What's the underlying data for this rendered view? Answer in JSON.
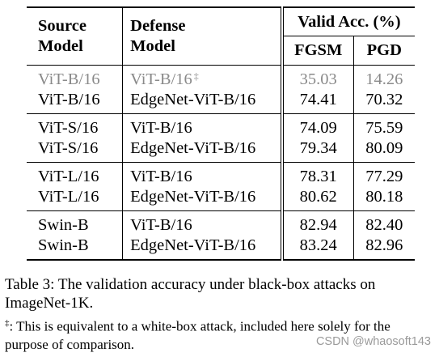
{
  "table": {
    "headers": {
      "source_line1": "Source",
      "source_line2": "Model",
      "defense_line1": "Defense",
      "defense_line2": "Model",
      "valid_acc": "Valid Acc. (%)",
      "fgsm": "FGSM",
      "pgd": "PGD"
    },
    "groups": [
      [
        {
          "source": "ViT-B/16",
          "defense": "ViT-B/16",
          "dagger": "‡",
          "fgsm": "35.03",
          "pgd": "14.26",
          "muted": true
        },
        {
          "source": "ViT-B/16",
          "defense": "EdgeNet-ViT-B/16",
          "fgsm": "74.41",
          "pgd": "70.32"
        }
      ],
      [
        {
          "source": "ViT-S/16",
          "defense": "ViT-B/16",
          "fgsm": "74.09",
          "pgd": "75.59"
        },
        {
          "source": "ViT-S/16",
          "defense": "EdgeNet-ViT-B/16",
          "fgsm": "79.34",
          "pgd": "80.09"
        }
      ],
      [
        {
          "source": "ViT-L/16",
          "defense": "ViT-B/16",
          "fgsm": "78.31",
          "pgd": "77.29"
        },
        {
          "source": "ViT-L/16",
          "defense": "EdgeNet-ViT-B/16",
          "fgsm": "80.62",
          "pgd": "80.18"
        }
      ],
      [
        {
          "source": "Swin-B",
          "defense": "ViT-B/16",
          "fgsm": "82.94",
          "pgd": "82.40"
        },
        {
          "source": "Swin-B",
          "defense": "EdgeNet-ViT-B/16",
          "fgsm": "83.24",
          "pgd": "82.96"
        }
      ]
    ]
  },
  "caption": "Table 3: The validation accuracy under black-box attacks on ImageNet-1K.",
  "footnote": {
    "mark": "‡",
    "text": ": This is equivalent to a white-box attack, included here solely for the purpose of comparison."
  },
  "watermark": "CSDN @whaosoft143",
  "colors": {
    "muted_row": "#8a8a8a",
    "watermark": "#9a9a9a"
  }
}
